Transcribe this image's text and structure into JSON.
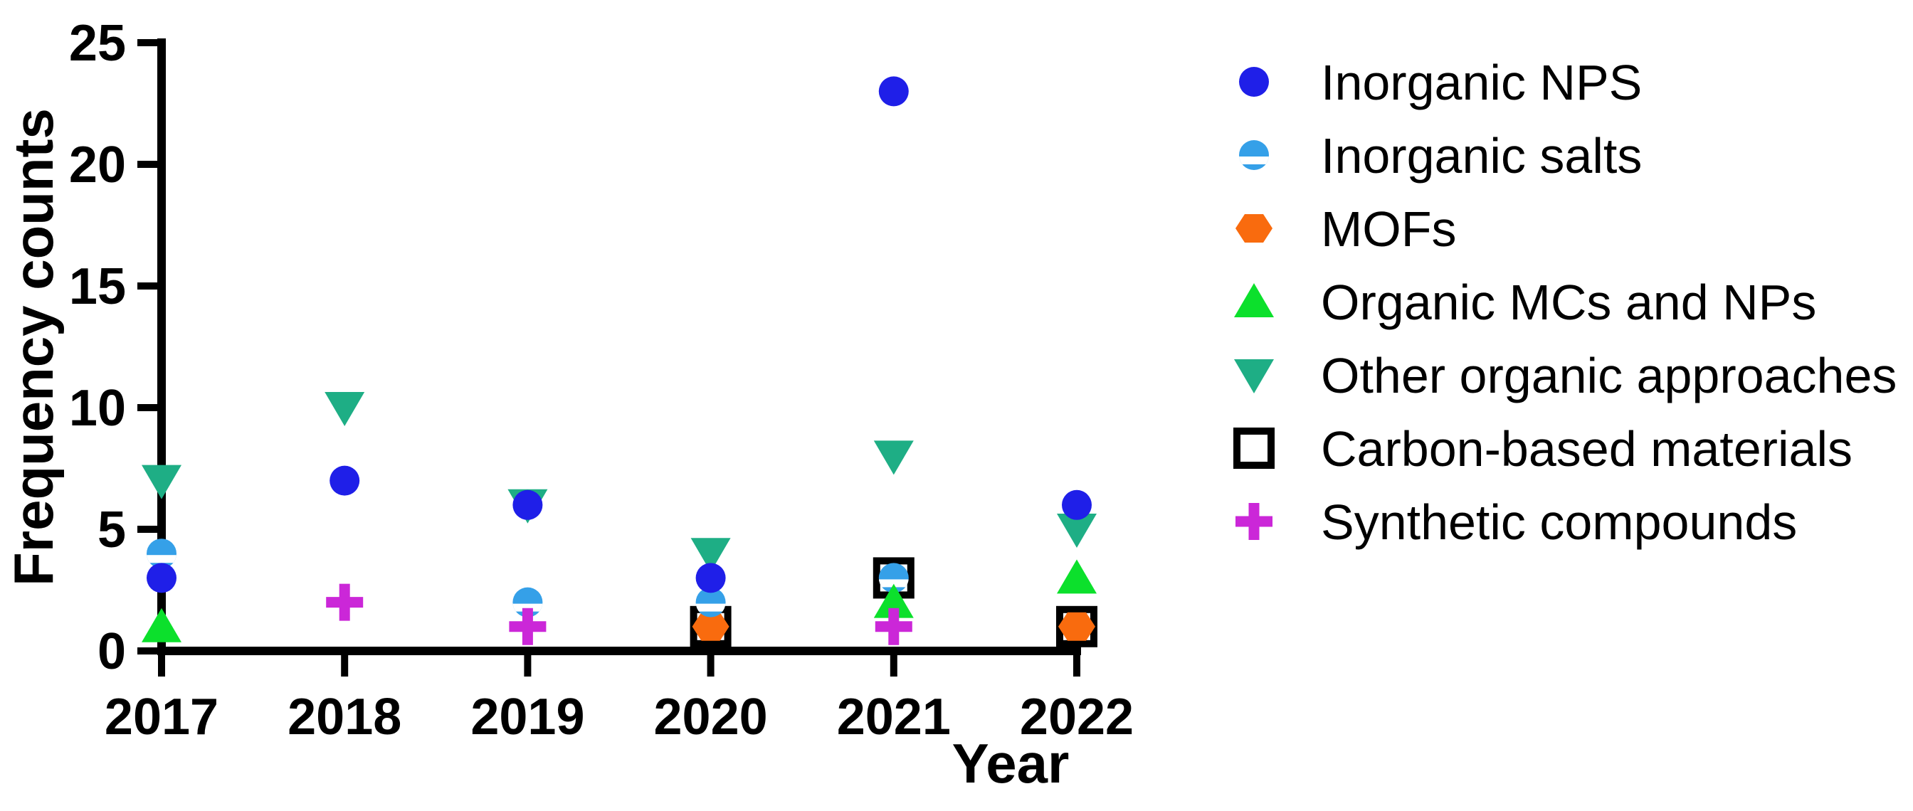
{
  "chart_data": {
    "type": "scatter",
    "title": "",
    "xlabel": "Year",
    "ylabel": "Frequency counts",
    "x_categories": [
      "2017",
      "2018",
      "2019",
      "2020",
      "2021",
      "2022"
    ],
    "yticks": [
      0,
      5,
      10,
      15,
      20,
      25
    ],
    "ylim": [
      0,
      25
    ],
    "grid": false,
    "legend_position": "right",
    "axis_color": "#000000",
    "series": [
      {
        "name": "Inorganic NPS",
        "marker": "circle",
        "icon": "filled-circle-icon",
        "color": "#1F1FE8",
        "values": [
          3,
          7,
          6,
          3,
          23,
          6
        ]
      },
      {
        "name": "Inorganic salts",
        "marker": "half-circle",
        "icon": "half-filled-circle-icon",
        "color": "#35A0E8",
        "values": [
          4,
          null,
          2,
          2,
          3,
          null
        ]
      },
      {
        "name": "MOFs",
        "marker": "hexagon",
        "icon": "hexagon-icon",
        "color": "#F96B0E",
        "values": [
          null,
          null,
          null,
          1,
          null,
          1
        ]
      },
      {
        "name": "Organic MCs and NPs",
        "marker": "triangle-up",
        "icon": "triangle-up-icon",
        "color": "#0CE02C",
        "values": [
          1,
          null,
          null,
          null,
          2,
          3
        ]
      },
      {
        "name": "Other organic approaches",
        "marker": "triangle-down",
        "icon": "triangle-down-icon",
        "color": "#1EAE85",
        "values": [
          7,
          10,
          6,
          4,
          8,
          5
        ]
      },
      {
        "name": "Carbon-based materials",
        "marker": "open-square",
        "icon": "open-square-icon",
        "color": "#000000",
        "values": [
          null,
          null,
          null,
          1,
          3,
          1
        ]
      },
      {
        "name": "Synthetic compounds",
        "marker": "plus",
        "icon": "plus-icon",
        "color": "#CB27D8",
        "values": [
          null,
          2,
          1,
          null,
          1,
          null
        ]
      }
    ],
    "draw_order": [
      4,
      5,
      2,
      1,
      0,
      3,
      6
    ]
  }
}
